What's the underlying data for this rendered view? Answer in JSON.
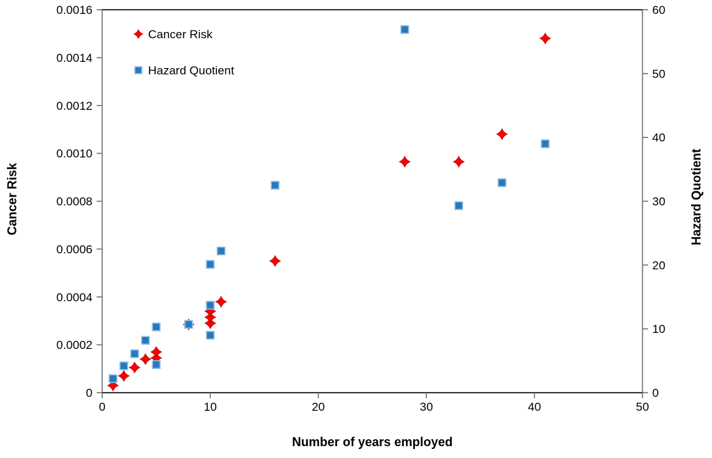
{
  "chart_data": {
    "type": "scatter",
    "title": "",
    "xlabel": "Number of years employed",
    "ylabel_left": "Cancer Risk",
    "ylabel_right": "Hazard Quotient",
    "xlim": [
      0,
      50
    ],
    "ylim_left": [
      0,
      0.0016
    ],
    "ylim_right": [
      0,
      60
    ],
    "x_ticks": [
      "0",
      "10",
      "20",
      "30",
      "40",
      "50"
    ],
    "y_ticks_left": [
      "0",
      "0.0002",
      "0.0004",
      "0.0006",
      "0.0008",
      "0.0010",
      "0.0012",
      "0.0014",
      "0.0016"
    ],
    "y_ticks_right": [
      "0",
      "10",
      "20",
      "30",
      "40",
      "50",
      "60"
    ],
    "grid": false,
    "legend_position": "inside-top-left",
    "series": [
      {
        "name": "Cancer Risk",
        "axis": "left",
        "marker": "diamond",
        "color": "#FE0000",
        "edge_color": "#C00000",
        "points": [
          [
            1,
            3e-05
          ],
          [
            2,
            7e-05
          ],
          [
            3,
            0.000105
          ],
          [
            4,
            0.00014
          ],
          [
            5,
            0.000145
          ],
          [
            5,
            0.00017
          ],
          [
            8,
            0.000285
          ],
          [
            10,
            0.00029
          ],
          [
            10,
            0.000315
          ],
          [
            10,
            0.00034
          ],
          [
            11,
            0.00038
          ],
          [
            16,
            0.00055
          ],
          [
            28,
            0.000965
          ],
          [
            33,
            0.000965
          ],
          [
            37,
            0.00108
          ],
          [
            41,
            0.00148
          ]
        ]
      },
      {
        "name": "Hazard Quotient",
        "axis": "right",
        "marker": "square",
        "color": "#2779BE",
        "edge_color": "#95BEE2",
        "points": [
          [
            1,
            2.2
          ],
          [
            2,
            4.2
          ],
          [
            3,
            6.1
          ],
          [
            4,
            8.2
          ],
          [
            5,
            4.4
          ],
          [
            5,
            10.3
          ],
          [
            8,
            10.7
          ],
          [
            10,
            9.0
          ],
          [
            10,
            13.7
          ],
          [
            10,
            20.1
          ],
          [
            11,
            22.2
          ],
          [
            16,
            32.5
          ],
          [
            28,
            56.9
          ],
          [
            33,
            29.3
          ],
          [
            37,
            32.9
          ],
          [
            41,
            39.0
          ]
        ]
      }
    ]
  },
  "colors": {
    "background": "#ffffff",
    "axis_line": "#6e6e6e",
    "top_bottom_border": "#3a3a3a",
    "text": "#000000",
    "cancer_risk_marker": "#FE0000",
    "hazard_quotient_marker": "#2779BE"
  }
}
